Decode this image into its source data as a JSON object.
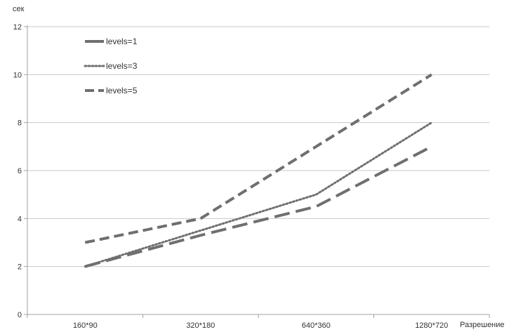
{
  "chart_data": {
    "type": "line",
    "title": "",
    "xlabel": "Разрешение",
    "ylabel": "сек",
    "categories": [
      "160*90",
      "320*180",
      "640*360",
      "1280*720"
    ],
    "ylim": [
      0,
      12
    ],
    "yticks": [
      0,
      2,
      4,
      6,
      8,
      10,
      12
    ],
    "grid": "horizontal",
    "legend_position": "top-left",
    "series": [
      {
        "name": "levels=1",
        "values": [
          3,
          4,
          7,
          10
        ],
        "style": "dashed",
        "color": "#6f6f6f"
      },
      {
        "name": "levels=3",
        "values": [
          2,
          3.5,
          5,
          8
        ],
        "style": "dotted",
        "color": "#6f6f6f"
      },
      {
        "name": "levels=5",
        "values": [
          2,
          3.3,
          4.5,
          7
        ],
        "style": "long-dash",
        "color": "#6f6f6f"
      }
    ],
    "colors": {
      "grid": "#c8c8c8",
      "axis": "#a0a0a0"
    }
  }
}
